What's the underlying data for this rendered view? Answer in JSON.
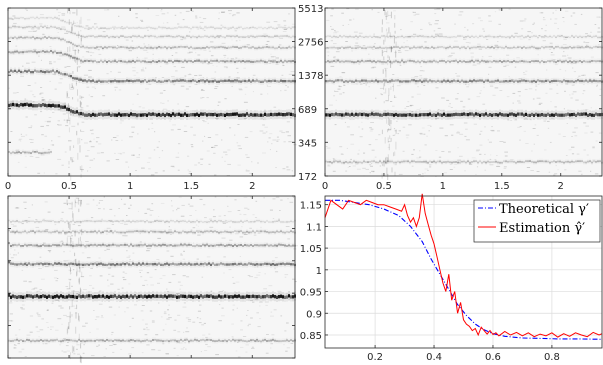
{
  "chart_data": [
    {
      "type": "heatmap",
      "panel": "top-left",
      "xlim": [
        0,
        2.35
      ],
      "x_ticks": [
        "0",
        "0.5",
        "1",
        "1.5",
        "2"
      ],
      "x_tick_values": [
        0,
        0.5,
        1,
        1.5,
        2
      ],
      "y_ticks": [
        "5513",
        "2756",
        "1378",
        "689",
        "345",
        "172"
      ],
      "y_tick_values": [
        5513,
        2756,
        1378,
        689,
        345,
        172
      ],
      "y_scale": "log",
      "ylim": [
        172,
        5513
      ],
      "y_tick_side": "right",
      "harmonics": [
        {
          "f_start": 745,
          "f_end": 610,
          "x_transition": [
            0.35,
            0.65
          ],
          "strength": 0.95
        },
        {
          "f_start": 1490,
          "f_end": 1220,
          "x_transition": [
            0.35,
            0.65
          ],
          "strength": 0.5
        },
        {
          "f_start": 2235,
          "f_end": 1830,
          "x_transition": [
            0.35,
            0.65
          ],
          "strength": 0.35
        },
        {
          "f_start": 2980,
          "f_end": 2440,
          "x_transition": [
            0.35,
            0.65
          ],
          "strength": 0.25
        },
        {
          "f_start": 3725,
          "f_end": 3050,
          "x_transition": [
            0.35,
            0.65
          ],
          "strength": 0.18
        },
        {
          "f_start": 4470,
          "f_end": 3660,
          "x_transition": [
            0.35,
            0.65
          ],
          "strength": 0.12
        },
        {
          "f_start": 280,
          "f_end": 280,
          "x_transition": [
            0.0,
            0.35
          ],
          "strength": 0.3
        }
      ]
    },
    {
      "type": "heatmap",
      "panel": "top-right",
      "xlim": [
        0,
        2.35
      ],
      "x_ticks": [
        "0",
        "0.5",
        "1",
        "1.5",
        "2"
      ],
      "x_tick_values": [
        0,
        0.5,
        1,
        1.5,
        2
      ],
      "y_scale": "log",
      "ylim": [
        172,
        5513
      ],
      "harmonics": [
        {
          "f_start": 610,
          "f_end": 610,
          "strength": 0.9
        },
        {
          "f_start": 1220,
          "f_end": 1220,
          "strength": 0.45
        },
        {
          "f_start": 1830,
          "f_end": 1830,
          "strength": 0.3
        },
        {
          "f_start": 2440,
          "f_end": 2440,
          "strength": 0.22
        },
        {
          "f_start": 3050,
          "f_end": 3050,
          "strength": 0.15
        },
        {
          "f_start": 230,
          "f_end": 230,
          "strength": 0.25
        }
      ]
    },
    {
      "type": "heatmap",
      "panel": "bottom-left",
      "xlim": [
        0,
        2.35
      ],
      "y_scale": "log",
      "ylim": [
        172,
        5513
      ],
      "harmonics": [
        {
          "f_start": 660,
          "f_end": 640,
          "strength": 0.95
        },
        {
          "f_start": 1320,
          "f_end": 1280,
          "strength": 0.5
        },
        {
          "f_start": 1980,
          "f_end": 1920,
          "strength": 0.35
        },
        {
          "f_start": 2640,
          "f_end": 2560,
          "strength": 0.25
        },
        {
          "f_start": 3300,
          "f_end": 3200,
          "strength": 0.15
        },
        {
          "f_start": 250,
          "f_end": 250,
          "strength": 0.3
        }
      ]
    },
    {
      "type": "line",
      "panel": "bottom-right",
      "xlim": [
        0.03,
        0.97
      ],
      "ylim": [
        0.82,
        1.17
      ],
      "x_ticks": [
        "0.2",
        "0.4",
        "0.6",
        "0.8"
      ],
      "x_tick_values": [
        0.2,
        0.4,
        0.6,
        0.8
      ],
      "y_ticks": [
        "1.15",
        "1.1",
        "1.05",
        "1",
        "0.95",
        "0.9",
        "0.85"
      ],
      "y_tick_values": [
        1.15,
        1.1,
        1.05,
        1,
        0.95,
        0.9,
        0.85
      ],
      "grid": true,
      "legend_placement": "top-right",
      "series": [
        {
          "name": "Theoretical γ′",
          "color": "#0000ff",
          "style": "dash-dot",
          "x": [
            0.03,
            0.08,
            0.13,
            0.18,
            0.23,
            0.28,
            0.32,
            0.36,
            0.39,
            0.42,
            0.45,
            0.48,
            0.51,
            0.54,
            0.57,
            0.6,
            0.64,
            0.7,
            0.76,
            0.82,
            0.88,
            0.97
          ],
          "y": [
            1.16,
            1.16,
            1.155,
            1.15,
            1.14,
            1.125,
            1.1,
            1.065,
            1.025,
            0.99,
            0.955,
            0.92,
            0.895,
            0.875,
            0.862,
            0.853,
            0.847,
            0.843,
            0.842,
            0.841,
            0.841,
            0.84
          ]
        },
        {
          "name": "Estimation γ̂′",
          "color": "#ff0000",
          "style": "solid",
          "x": [
            0.03,
            0.05,
            0.07,
            0.09,
            0.11,
            0.13,
            0.15,
            0.17,
            0.19,
            0.21,
            0.23,
            0.25,
            0.27,
            0.29,
            0.3,
            0.31,
            0.32,
            0.33,
            0.34,
            0.35,
            0.36,
            0.37,
            0.38,
            0.39,
            0.4,
            0.41,
            0.42,
            0.43,
            0.44,
            0.45,
            0.46,
            0.47,
            0.48,
            0.49,
            0.5,
            0.51,
            0.52,
            0.53,
            0.54,
            0.55,
            0.56,
            0.57,
            0.58,
            0.59,
            0.6,
            0.61,
            0.62,
            0.64,
            0.66,
            0.68,
            0.7,
            0.72,
            0.74,
            0.76,
            0.78,
            0.8,
            0.82,
            0.84,
            0.86,
            0.88,
            0.9,
            0.92,
            0.94,
            0.96,
            0.97
          ],
          "y": [
            1.12,
            1.16,
            1.15,
            1.14,
            1.16,
            1.155,
            1.15,
            1.16,
            1.155,
            1.15,
            1.15,
            1.145,
            1.14,
            1.135,
            1.15,
            1.125,
            1.11,
            1.12,
            1.1,
            1.12,
            1.175,
            1.13,
            1.105,
            1.08,
            1.06,
            1.03,
            1.0,
            0.97,
            0.95,
            0.99,
            0.93,
            0.95,
            0.9,
            0.925,
            0.885,
            0.875,
            0.87,
            0.86,
            0.865,
            0.85,
            0.868,
            0.86,
            0.852,
            0.86,
            0.851,
            0.855,
            0.848,
            0.858,
            0.85,
            0.856,
            0.848,
            0.855,
            0.846,
            0.852,
            0.848,
            0.855,
            0.845,
            0.853,
            0.847,
            0.855,
            0.85,
            0.846,
            0.856,
            0.85,
            0.853
          ]
        }
      ],
      "legend": [
        "Theoretical γ′",
        "Estimation γ̂′"
      ]
    }
  ]
}
